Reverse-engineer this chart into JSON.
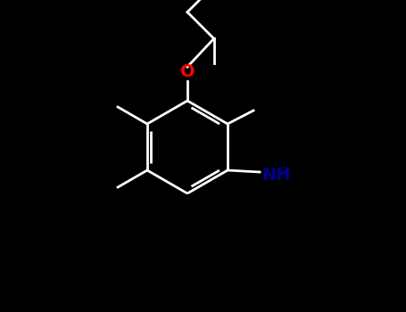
{
  "bg_color": "#000000",
  "bond_color": "#ffffff",
  "o_color": "#ff0000",
  "n_color": "#00008b",
  "lw": 2.0,
  "font_size": 14,
  "figsize": [
    4.55,
    3.5
  ],
  "dpi": 100
}
